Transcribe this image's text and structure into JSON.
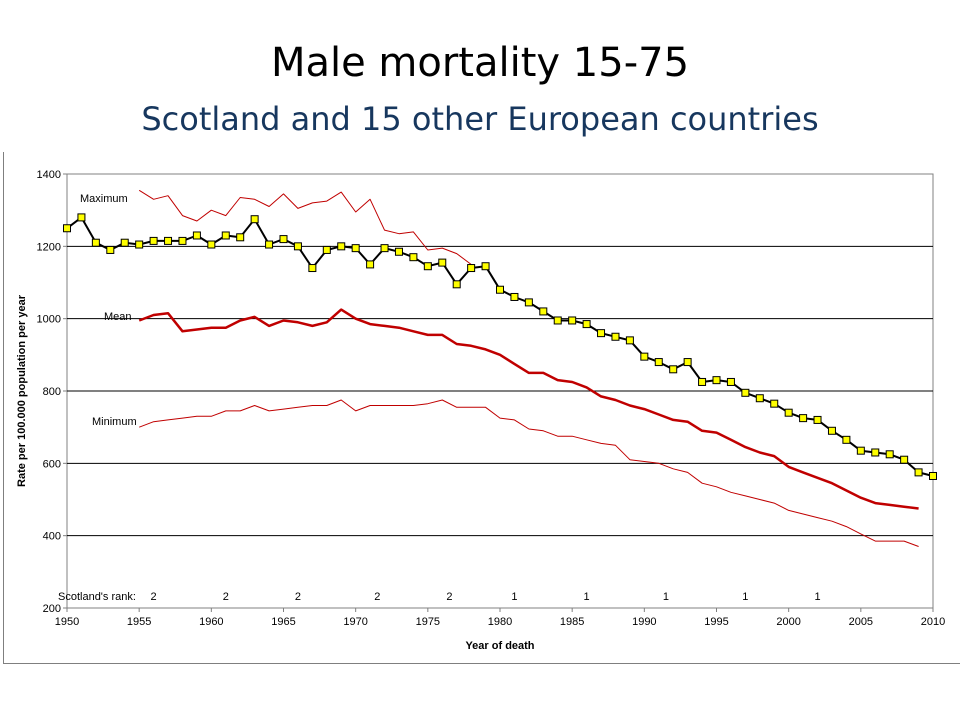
{
  "title": "Male mortality 15-75",
  "subtitle": "Scotland and 15 other European countries",
  "chart_data": {
    "type": "line",
    "xlabel": "Year of death",
    "ylabel": "Rate per 100.000 population per year",
    "xlim": [
      1950,
      2010
    ],
    "ylim": [
      200,
      1400
    ],
    "x_ticks": [
      1950,
      1955,
      1960,
      1965,
      1970,
      1975,
      1980,
      1985,
      1990,
      1995,
      2000,
      2005,
      2010
    ],
    "y_ticks": [
      200,
      400,
      600,
      800,
      1000,
      1200,
      1400
    ],
    "grid": "horizontal",
    "colors": {
      "scotland": "#000000",
      "marker": "#ffff00",
      "mean": "#c00000",
      "minmax": "#c00000"
    },
    "annotations": {
      "maximum": "Maximum",
      "mean": "Mean",
      "minimum": "Minimum",
      "rank_label": "Scotland's rank:"
    },
    "scotland_rank": [
      {
        "x": 1956,
        "rank": "2"
      },
      {
        "x": 1961,
        "rank": "2"
      },
      {
        "x": 1966,
        "rank": "2"
      },
      {
        "x": 1971.5,
        "rank": "2"
      },
      {
        "x": 1976.5,
        "rank": "2"
      },
      {
        "x": 1981,
        "rank": "1"
      },
      {
        "x": 1986,
        "rank": "1"
      },
      {
        "x": 1991.5,
        "rank": "1"
      },
      {
        "x": 1997,
        "rank": "1"
      },
      {
        "x": 2002,
        "rank": "1"
      }
    ],
    "series": [
      {
        "key": "scotland",
        "x": [
          1950,
          1951,
          1952,
          1953,
          1954,
          1955,
          1956,
          1957,
          1958,
          1959,
          1960,
          1961,
          1962,
          1963,
          1964,
          1965,
          1966,
          1967,
          1968,
          1969,
          1970,
          1971,
          1972,
          1973,
          1974,
          1975,
          1976,
          1977,
          1978,
          1979,
          1980,
          1981,
          1982,
          1983,
          1984,
          1985,
          1986,
          1987,
          1988,
          1989,
          1990,
          1991,
          1992,
          1993,
          1994,
          1995,
          1996,
          1997,
          1998,
          1999,
          2000,
          2001,
          2002,
          2003,
          2004,
          2005,
          2006,
          2007,
          2008,
          2009,
          2010
        ],
        "y": [
          1250,
          1280,
          1210,
          1190,
          1210,
          1205,
          1215,
          1215,
          1215,
          1230,
          1205,
          1230,
          1225,
          1275,
          1205,
          1220,
          1200,
          1140,
          1190,
          1200,
          1195,
          1150,
          1195,
          1185,
          1170,
          1145,
          1155,
          1095,
          1140,
          1145,
          1080,
          1060,
          1045,
          1020,
          995,
          995,
          985,
          960,
          950,
          940,
          895,
          880,
          860,
          880,
          825,
          830,
          825,
          795,
          780,
          765,
          740,
          725,
          720,
          690,
          665,
          635,
          630,
          625,
          610,
          575,
          565
        ]
      },
      {
        "key": "maximum",
        "x": [
          1955,
          1956,
          1957,
          1958,
          1959,
          1960,
          1961,
          1962,
          1963,
          1964,
          1965,
          1966,
          1967,
          1968,
          1969,
          1970,
          1971,
          1972,
          1973,
          1974,
          1975,
          1976,
          1977,
          1978
        ],
        "y": [
          1355,
          1330,
          1340,
          1285,
          1270,
          1300,
          1285,
          1335,
          1330,
          1310,
          1345,
          1305,
          1320,
          1325,
          1350,
          1295,
          1330,
          1245,
          1235,
          1240,
          1190,
          1195,
          1180,
          1150
        ]
      },
      {
        "key": "mean",
        "x": [
          1955,
          1956,
          1957,
          1958,
          1959,
          1960,
          1961,
          1962,
          1963,
          1964,
          1965,
          1966,
          1967,
          1968,
          1969,
          1970,
          1971,
          1972,
          1973,
          1974,
          1975,
          1976,
          1977,
          1978,
          1979,
          1980,
          1981,
          1982,
          1983,
          1984,
          1985,
          1986,
          1987,
          1988,
          1989,
          1990,
          1991,
          1992,
          1993,
          1994,
          1995,
          1996,
          1997,
          1998,
          1999,
          2000,
          2001,
          2002,
          2003,
          2004,
          2005,
          2006,
          2007,
          2008,
          2009
        ],
        "y": [
          995,
          1010,
          1015,
          965,
          970,
          975,
          975,
          995,
          1005,
          980,
          995,
          990,
          980,
          990,
          1025,
          1000,
          985,
          980,
          975,
          965,
          955,
          955,
          930,
          925,
          915,
          900,
          875,
          850,
          850,
          830,
          825,
          810,
          785,
          775,
          760,
          750,
          735,
          720,
          715,
          690,
          685,
          665,
          645,
          630,
          620,
          590,
          575,
          560,
          545,
          525,
          505,
          490,
          485,
          480,
          475
        ]
      },
      {
        "key": "minimum",
        "x": [
          1955,
          1956,
          1957,
          1958,
          1959,
          1960,
          1961,
          1962,
          1963,
          1964,
          1965,
          1966,
          1967,
          1968,
          1969,
          1970,
          1971,
          1972,
          1973,
          1974,
          1975,
          1976,
          1977,
          1978,
          1979,
          1980,
          1981,
          1982,
          1983,
          1984,
          1985,
          1986,
          1987,
          1988,
          1989,
          1990,
          1991,
          1992,
          1993,
          1994,
          1995,
          1996,
          1997,
          1998,
          1999,
          2000,
          2001,
          2002,
          2003,
          2004,
          2005,
          2006,
          2007,
          2008,
          2009
        ],
        "y": [
          700,
          715,
          720,
          725,
          730,
          730,
          745,
          745,
          760,
          745,
          750,
          755,
          760,
          760,
          775,
          745,
          760,
          760,
          760,
          760,
          765,
          775,
          755,
          755,
          755,
          725,
          720,
          695,
          690,
          675,
          675,
          665,
          655,
          650,
          610,
          605,
          600,
          585,
          575,
          545,
          535,
          520,
          510,
          500,
          490,
          470,
          460,
          450,
          440,
          425,
          405,
          385,
          385,
          385,
          370
        ]
      }
    ]
  }
}
